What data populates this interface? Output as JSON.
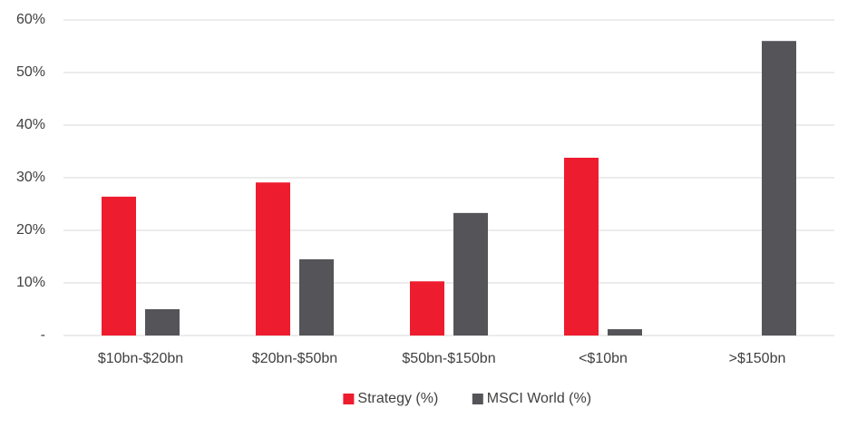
{
  "chart_data": {
    "type": "bar",
    "categories": [
      "$10bn-$20bn",
      "$20bn-$50bn",
      "$50bn-$150bn",
      "<$10bn",
      ">$150bn"
    ],
    "series": [
      {
        "name": "Strategy (%)",
        "color": "#ed1c2e",
        "values": [
          26.4,
          29.1,
          10.3,
          33.8,
          0
        ]
      },
      {
        "name": "MSCI World (%)",
        "color": "#555559",
        "values": [
          5.0,
          14.5,
          23.3,
          1.2,
          56.0
        ]
      }
    ],
    "ylim": [
      0,
      60
    ],
    "yticks": [
      {
        "value": 0,
        "label": "-"
      },
      {
        "value": 10,
        "label": "10%"
      },
      {
        "value": 20,
        "label": "20%"
      },
      {
        "value": 30,
        "label": "30%"
      },
      {
        "value": 40,
        "label": "40%"
      },
      {
        "value": 50,
        "label": "50%"
      },
      {
        "value": 60,
        "label": "60%"
      }
    ],
    "grid": true,
    "legend": "bottom"
  }
}
